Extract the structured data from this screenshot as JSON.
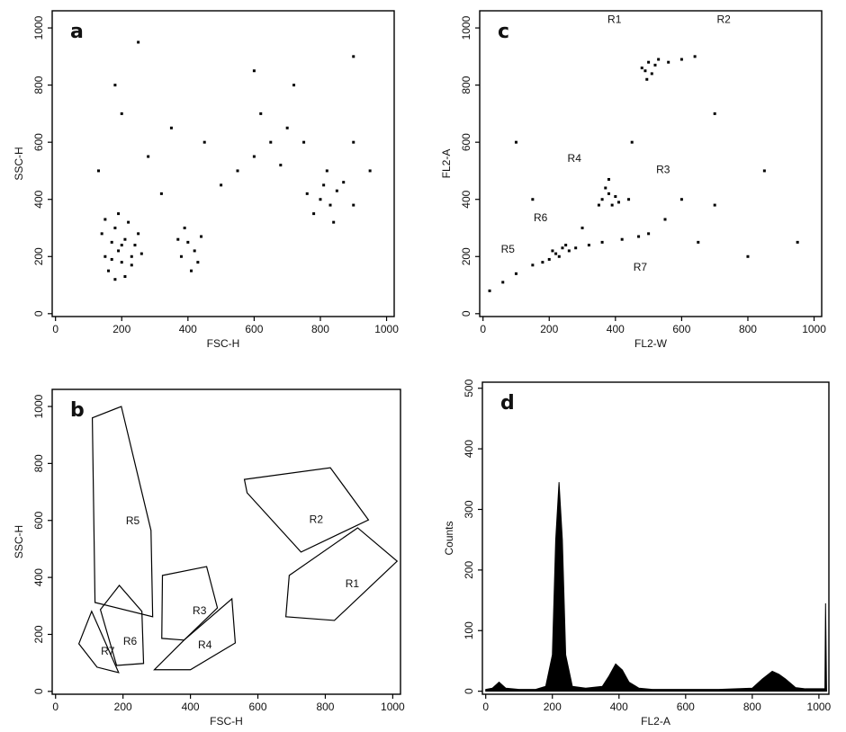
{
  "chart_data": [
    {
      "type": "scatter",
      "title": "a",
      "x_label": "FSC-H",
      "y_label": "SSC-H",
      "xlim": [
        -10,
        1023
      ],
      "ylim": [
        -10,
        1060
      ],
      "xticks": [
        0,
        200,
        400,
        600,
        800,
        1000
      ],
      "yticks": [
        0,
        200,
        400,
        600,
        800,
        1000
      ],
      "color": "#000000",
      "x": [
        150,
        170,
        190,
        210,
        230,
        180,
        200,
        160,
        220,
        240,
        190,
        210,
        140,
        250,
        170,
        200,
        230,
        180,
        260,
        150,
        380,
        400,
        420,
        390,
        430,
        370,
        410,
        440,
        800,
        830,
        850,
        780,
        870,
        820,
        760,
        900,
        840,
        810,
        650,
        700,
        600,
        680,
        750,
        550,
        620,
        720,
        900,
        500,
        320,
        280,
        200,
        180,
        250,
        130,
        350,
        450,
        950,
        600,
        900
      ],
      "values": [
        200,
        250,
        220,
        260,
        200,
        300,
        180,
        150,
        320,
        240,
        350,
        130,
        280,
        280,
        190,
        240,
        170,
        120,
        210,
        330,
        200,
        250,
        220,
        300,
        180,
        260,
        150,
        270,
        400,
        380,
        430,
        350,
        460,
        500,
        420,
        380,
        320,
        450,
        600,
        650,
        550,
        520,
        600,
        500,
        700,
        800,
        600,
        450,
        420,
        550,
        700,
        800,
        950,
        500,
        650,
        600,
        500,
        850,
        900
      ]
    },
    {
      "type": "polygon",
      "title": "b",
      "x_label": "FSC-H",
      "y_label": "SSC-H",
      "xlim": [
        -10,
        1023
      ],
      "ylim": [
        -10,
        1060
      ],
      "xticks": [
        0,
        200,
        400,
        600,
        800,
        1000
      ],
      "yticks": [
        0,
        200,
        400,
        600,
        800,
        1000
      ],
      "color": "#000000",
      "regions": [
        {
          "x": [
            109,
            195,
            283,
            288,
            117
          ],
          "y": [
            960,
            1000,
            565,
            262,
            312
          ]
        },
        {
          "x": [
            133,
            189,
            256,
            261,
            181
          ],
          "y": [
            287,
            372,
            281,
            98,
            91
          ]
        },
        {
          "x": [
            69,
            107,
            187,
            123
          ],
          "y": [
            167,
            281,
            66,
            85
          ]
        },
        {
          "x": [
            317,
            448,
            480,
            381,
            315
          ],
          "y": [
            407,
            438,
            293,
            180,
            186
          ]
        },
        {
          "x": [
            293,
            400,
            533,
            523,
            381
          ],
          "y": [
            76,
            76,
            170,
            325,
            180
          ]
        },
        {
          "x": [
            560,
            815,
            928,
            728,
            568
          ],
          "y": [
            744,
            785,
            602,
            489,
            697
          ]
        },
        {
          "x": [
            693,
            683,
            827,
            1013,
            896
          ],
          "y": [
            407,
            262,
            249,
            457,
            574
          ]
        }
      ],
      "annotations": [
        {
          "text": "R5",
          "x": 229,
          "y": 596
        },
        {
          "text": "R6",
          "x": 221,
          "y": 173
        },
        {
          "text": "R7",
          "x": 155,
          "y": 139
        },
        {
          "text": "R3",
          "x": 427,
          "y": 281
        },
        {
          "text": "R4",
          "x": 443,
          "y": 161
        },
        {
          "text": "R2",
          "x": 773,
          "y": 602
        },
        {
          "text": "R1",
          "x": 880,
          "y": 375
        }
      ]
    },
    {
      "type": "scatter",
      "title": "c",
      "x_label": "FL2-W",
      "y_label": "FL2-A",
      "xlim": [
        -10,
        1023
      ],
      "ylim": [
        -10,
        1060
      ],
      "xticks": [
        0,
        200,
        400,
        600,
        800,
        1000
      ],
      "yticks": [
        0,
        200,
        400,
        600,
        800,
        1000
      ],
      "color": "#000000",
      "x": [
        490,
        500,
        510,
        520,
        495,
        530,
        560,
        600,
        640,
        480,
        360,
        380,
        390,
        370,
        400,
        350,
        410,
        380,
        440,
        220,
        240,
        260,
        230,
        250,
        210,
        280,
        200,
        320,
        360,
        420,
        470,
        500,
        20,
        60,
        100,
        150,
        180,
        600,
        700,
        650,
        800,
        450,
        150,
        100,
        700,
        850,
        300,
        550,
        950
      ],
      "values": [
        850,
        880,
        840,
        870,
        820,
        890,
        880,
        890,
        900,
        860,
        400,
        420,
        380,
        440,
        410,
        380,
        390,
        470,
        400,
        210,
        230,
        220,
        200,
        240,
        220,
        230,
        190,
        240,
        250,
        260,
        270,
        280,
        80,
        110,
        140,
        170,
        180,
        400,
        380,
        250,
        200,
        600,
        400,
        600,
        700,
        500,
        300,
        330,
        250
      ],
      "annotations": [
        {
          "text": "R1",
          "x": 397,
          "y": 1028
        },
        {
          "text": "R2",
          "x": 727,
          "y": 1028
        },
        {
          "text": "R4",
          "x": 276,
          "y": 542
        },
        {
          "text": "R3",
          "x": 544,
          "y": 502
        },
        {
          "text": "R6",
          "x": 174,
          "y": 334
        },
        {
          "text": "R5",
          "x": 75,
          "y": 224
        },
        {
          "text": "R7",
          "x": 475,
          "y": 160
        }
      ]
    },
    {
      "type": "area",
      "title": "d",
      "x_label": "FL2-A",
      "y_label": "Counts",
      "xlim": [
        -10,
        1030
      ],
      "ylim": [
        -5,
        510
      ],
      "xticks": [
        0,
        200,
        400,
        600,
        800,
        1000
      ],
      "yticks": [
        0,
        100,
        200,
        300,
        400,
        500
      ],
      "color": "#000000",
      "x": [
        0,
        20,
        40,
        60,
        100,
        150,
        180,
        200,
        210,
        220,
        230,
        240,
        260,
        300,
        350,
        370,
        390,
        410,
        430,
        460,
        500,
        600,
        700,
        800,
        830,
        860,
        880,
        900,
        930,
        960,
        1000,
        1010,
        1018,
        1020,
        1023
      ],
      "values": [
        3,
        5,
        15,
        5,
        3,
        3,
        8,
        60,
        250,
        345,
        250,
        60,
        8,
        5,
        8,
        25,
        45,
        35,
        15,
        5,
        3,
        3,
        3,
        5,
        20,
        33,
        28,
        20,
        6,
        4,
        4,
        4,
        4,
        145,
        4
      ]
    }
  ]
}
